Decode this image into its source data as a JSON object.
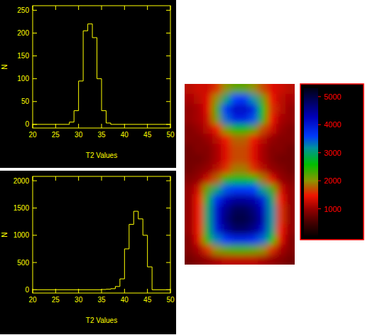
{
  "chart_data": [
    {
      "type": "histogram",
      "x_label": "T2 Values",
      "y_label": "N",
      "color": "#ffff00",
      "bins": [
        28,
        29,
        30,
        31,
        32,
        33,
        34,
        35,
        36,
        37
      ],
      "values": [
        5,
        30,
        95,
        205,
        220,
        190,
        100,
        30,
        3
      ],
      "xlim": [
        20,
        50
      ],
      "xticks": [
        20,
        25,
        30,
        35,
        40,
        45,
        50
      ],
      "ylim": [
        -8,
        260
      ],
      "yticks": [
        0,
        50,
        100,
        150,
        200,
        250
      ]
    },
    {
      "type": "histogram",
      "x_label": "T2 Values",
      "y_label": "N",
      "color": "#ffff00",
      "bins": [
        35,
        36,
        37,
        38,
        39,
        40,
        41,
        42,
        43,
        44,
        45,
        46
      ],
      "values": [
        5,
        10,
        20,
        60,
        200,
        750,
        1200,
        1440,
        1300,
        1000,
        420
      ],
      "xlim": [
        20,
        50
      ],
      "xticks": [
        20,
        25,
        30,
        35,
        40,
        45,
        50
      ],
      "ylim": [
        -60,
        2080
      ],
      "yticks": [
        0,
        500,
        1000,
        1500,
        2000
      ]
    },
    {
      "type": "heatmap",
      "tick_labels": false,
      "color": "#ff0000",
      "cells": [
        [
          1200,
          1300,
          1300,
          1600,
          2000,
          2200,
          2200,
          2000,
          1700,
          1400,
          1300,
          1200
        ],
        [
          1100,
          1200,
          1400,
          2000,
          3000,
          3600,
          3700,
          3200,
          2200,
          1500,
          1200,
          1100
        ],
        [
          1000,
          1100,
          1400,
          2300,
          3700,
          4200,
          4200,
          3900,
          2600,
          1600,
          1200,
          1000
        ],
        [
          1000,
          1100,
          1300,
          2100,
          3400,
          3900,
          3900,
          3500,
          2400,
          1500,
          1100,
          1000
        ],
        [
          900,
          1000,
          1200,
          1500,
          2100,
          2500,
          2500,
          2200,
          1700,
          1300,
          1000,
          900
        ],
        [
          900,
          900,
          1000,
          1200,
          1500,
          1800,
          1800,
          1500,
          1200,
          1000,
          900,
          900
        ],
        [
          800,
          900,
          900,
          1100,
          1400,
          1700,
          1700,
          1400,
          1100,
          900,
          900,
          800
        ],
        [
          800,
          800,
          900,
          1100,
          1400,
          1700,
          1700,
          1400,
          1100,
          900,
          800,
          800
        ],
        [
          800,
          900,
          1000,
          1200,
          1600,
          1900,
          1900,
          1600,
          1200,
          1000,
          900,
          800
        ],
        [
          900,
          1000,
          1300,
          1800,
          2400,
          2700,
          2700,
          2500,
          1900,
          1400,
          1000,
          900
        ],
        [
          1000,
          1300,
          2200,
          3000,
          3500,
          3700,
          3700,
          3600,
          3100,
          2300,
          1300,
          1000
        ],
        [
          1000,
          1500,
          2800,
          3800,
          4300,
          4500,
          4500,
          4400,
          4000,
          3000,
          1500,
          1000
        ],
        [
          1000,
          1500,
          3000,
          4100,
          4600,
          4900,
          4900,
          4700,
          4300,
          3200,
          1600,
          1000
        ],
        [
          1000,
          1500,
          3000,
          4100,
          4700,
          5000,
          5000,
          4800,
          4400,
          3200,
          1600,
          1000
        ],
        [
          1000,
          1500,
          2900,
          4000,
          4500,
          4800,
          4800,
          4600,
          4200,
          3100,
          1500,
          1000
        ],
        [
          900,
          1400,
          2500,
          3300,
          3700,
          3900,
          3900,
          3800,
          3400,
          2600,
          1400,
          900
        ],
        [
          900,
          1100,
          1600,
          2000,
          2200,
          2300,
          2300,
          2200,
          2000,
          1600,
          1100,
          900
        ],
        [
          800,
          900,
          1000,
          1100,
          1200,
          1200,
          1200,
          1200,
          1100,
          1000,
          900,
          800
        ]
      ],
      "clim": [
        0,
        5300
      ],
      "cticks": [
        1000,
        2000,
        3000,
        4000,
        5000
      ]
    }
  ]
}
